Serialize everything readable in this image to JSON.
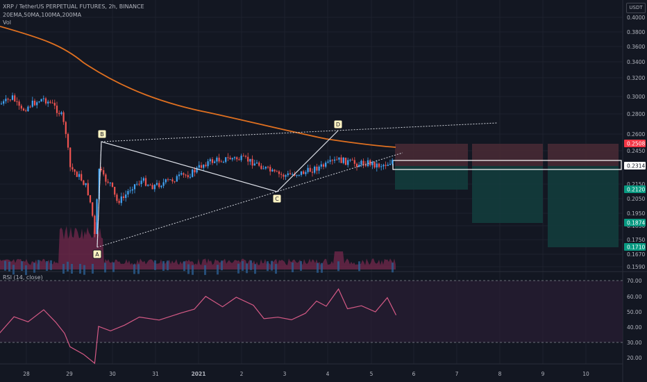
{
  "header": {
    "title": "XRP / TetherUS PERPETUAL FUTURES, 2h, BINANCE",
    "indicators": "20EMA,50MA,100MA,200MA",
    "volume": "Vol",
    "rsi_title": "RSI (14, close)",
    "currency": "USDT"
  },
  "price_axis": [
    "0.4000",
    "0.3800",
    "0.3600",
    "0.3400",
    "0.3200",
    "0.3000",
    "0.2800",
    "0.2600",
    "0.2450",
    "0.2150",
    "0.2050",
    "0.1950",
    "0.1830",
    "0.1750",
    "0.1670",
    "0.1590"
  ],
  "rsi_axis": [
    "70.00",
    "60.00",
    "50.00",
    "40.00",
    "30.00",
    "20.00"
  ],
  "time_axis": [
    "28",
    "29",
    "30",
    "31",
    "2021",
    "2",
    "3",
    "4",
    "5",
    "6",
    "7",
    "8",
    "9",
    "10"
  ],
  "price_tags": [
    {
      "label": "0.2508",
      "color": "#f23645"
    },
    {
      "label": "0.2314",
      "color": "#ffffff"
    },
    {
      "label": "0.2120",
      "color": "#089981"
    },
    {
      "label": "0.1874",
      "color": "#089981"
    },
    {
      "label": "0.1710",
      "color": "#089981"
    }
  ],
  "pattern_points": [
    "A",
    "B",
    "C",
    "D"
  ],
  "colors": {
    "up": "#42a5f5",
    "down": "#ef5350",
    "ma": "#e07020",
    "rsi": "#d65a86",
    "stop": "#4a2a35",
    "target": "#133c3c"
  }
}
